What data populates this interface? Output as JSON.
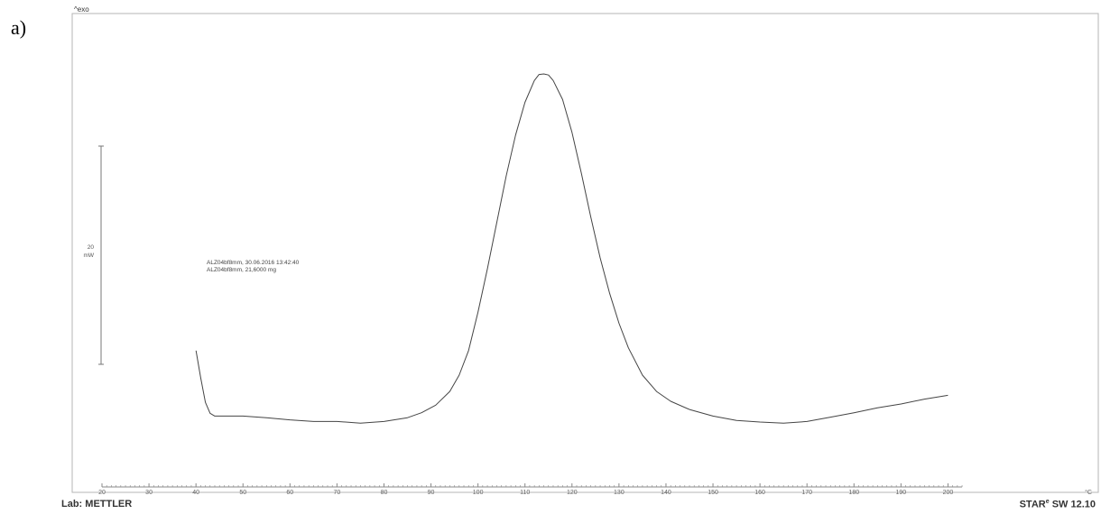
{
  "panel_label": "a)",
  "exo_label": "^exo",
  "footer": {
    "lab": "Lab: METTLER",
    "software": "STAR",
    "software_sup": "e",
    "software_version": " SW 12.10"
  },
  "chart_data": {
    "type": "line",
    "title": "",
    "xlabel": "",
    "ylabel": "",
    "x_unit": "°C",
    "xlim": [
      20,
      203
    ],
    "x_ticks": [
      20,
      30,
      40,
      50,
      60,
      70,
      80,
      90,
      100,
      110,
      120,
      130,
      140,
      150,
      160,
      170,
      180,
      190,
      200
    ],
    "y_unit_mW": [
      -30,
      50
    ],
    "grid": false,
    "legend": "none",
    "scale_bar": {
      "value": "20",
      "unit": "mW"
    },
    "annotations": [
      "ALZ04bf8mm, 30.06.2016 13:42:40",
      "ALZ04bf8mm, 21,6000 mg"
    ],
    "series": [
      {
        "x": [
          40,
          41,
          42,
          43,
          44,
          46,
          50,
          55,
          60,
          65,
          70,
          75,
          80,
          85,
          88,
          91,
          94,
          96,
          98,
          100,
          102,
          104,
          106,
          108,
          110,
          112,
          113,
          114,
          115,
          116,
          118,
          120,
          122,
          124,
          126,
          128,
          130,
          132,
          135,
          138,
          141,
          145,
          150,
          155,
          160,
          165,
          170,
          175,
          180,
          185,
          190,
          195,
          200
        ],
        "values": [
          -5.0,
          -10.0,
          -14.5,
          -16.5,
          -17.0,
          -17.0,
          -17.0,
          -17.3,
          -17.7,
          -18.0,
          -18.0,
          -18.3,
          -18.0,
          -17.3,
          -16.4,
          -15.0,
          -12.5,
          -9.5,
          -5.0,
          2.0,
          10.0,
          18.5,
          27.0,
          34.5,
          40.5,
          44.5,
          45.6,
          45.7,
          45.5,
          44.5,
          41.0,
          35.0,
          27.5,
          19.5,
          12.0,
          5.5,
          0.0,
          -4.5,
          -9.5,
          -12.5,
          -14.3,
          -15.8,
          -17.0,
          -17.8,
          -18.1,
          -18.3,
          -18.0,
          -17.2,
          -16.4,
          -15.5,
          -14.8,
          -13.9,
          -13.2
        ]
      }
    ]
  }
}
